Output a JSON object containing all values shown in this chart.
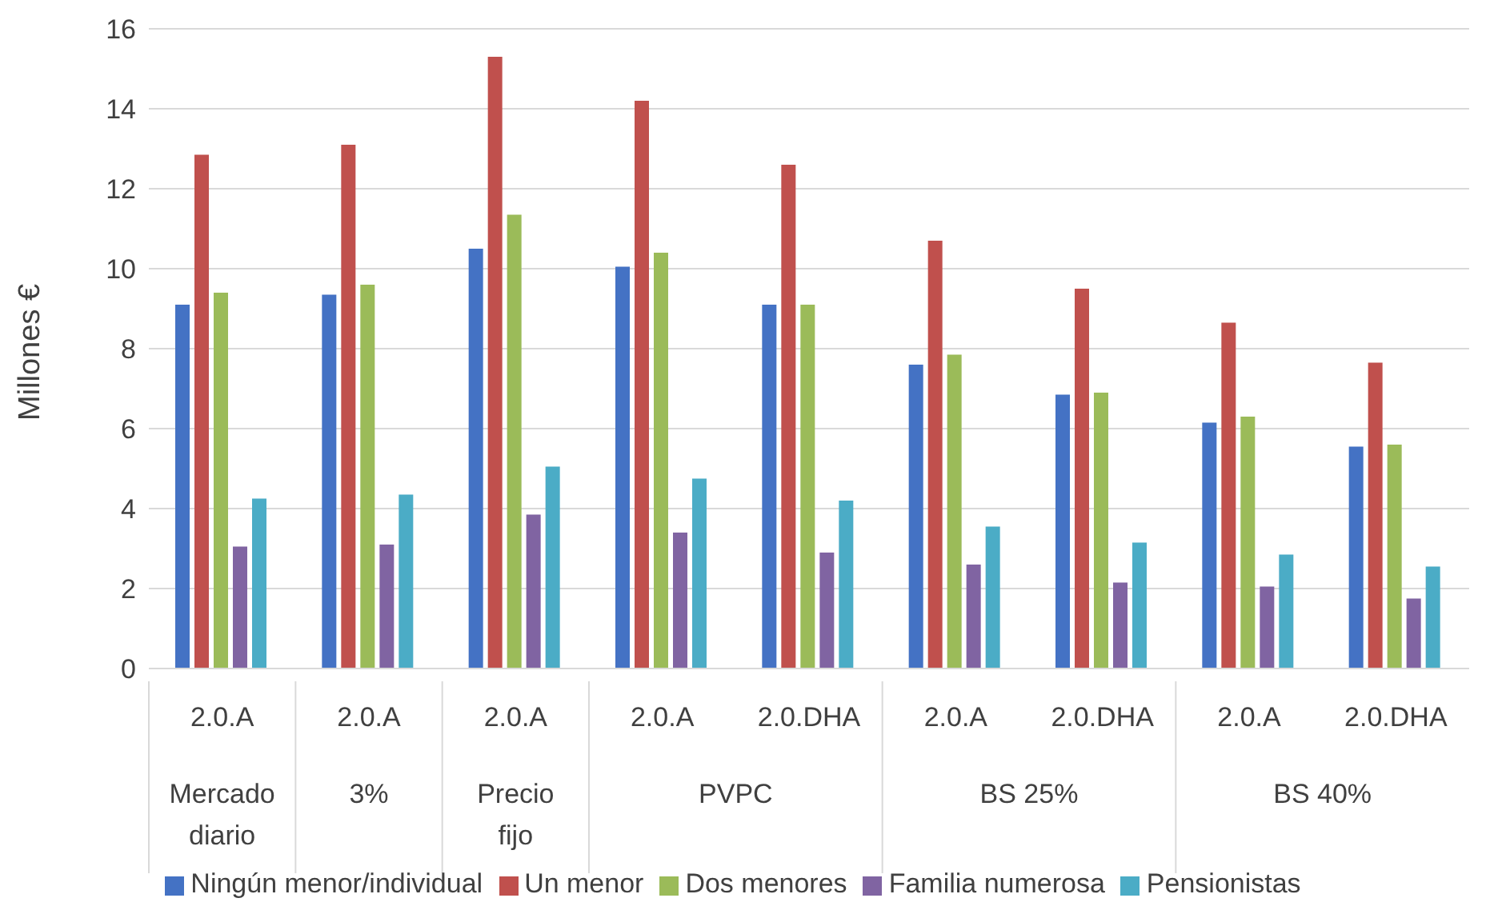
{
  "chart_data": {
    "type": "bar",
    "ylabel": "Millones €",
    "categories": [
      "2.0.A",
      "2.0.A",
      "2.0.A",
      "2.0.A",
      "2.0.DHA",
      "2.0.A",
      "2.0.DHA",
      "2.0.A",
      "2.0.DHA"
    ],
    "annotations": [
      "Mercado diario",
      "3%",
      "Precio fijo",
      "PVPC",
      "BS 25%",
      "BS 40%"
    ],
    "series": [
      {
        "name": "Ningún menor/individual",
        "color": "#4472c4",
        "values": [
          9.1,
          9.35,
          10.5,
          10.05,
          9.1,
          7.6,
          6.85,
          6.15,
          5.55
        ]
      },
      {
        "name": "Un menor",
        "color": "#c0504d",
        "values": [
          12.85,
          13.1,
          15.3,
          14.2,
          12.6,
          10.7,
          9.5,
          8.65,
          7.65
        ]
      },
      {
        "name": "Dos menores",
        "color": "#9bbb59",
        "values": [
          9.4,
          9.6,
          11.35,
          10.4,
          9.1,
          7.85,
          6.9,
          6.3,
          5.6
        ]
      },
      {
        "name": "Familia numerosa",
        "color": "#8064a2",
        "values": [
          3.05,
          3.1,
          3.85,
          3.4,
          2.9,
          2.6,
          2.15,
          2.05,
          1.75
        ]
      },
      {
        "name": "Pensionistas",
        "color": "#4bacc6",
        "values": [
          4.25,
          4.35,
          5.05,
          4.75,
          4.2,
          3.55,
          3.15,
          2.85,
          2.55
        ]
      }
    ],
    "ylim": [
      0,
      16
    ],
    "yticks": [
      0,
      2,
      4,
      6,
      8,
      10,
      12,
      14,
      16
    ],
    "grid": "y",
    "legend": "bottom"
  }
}
